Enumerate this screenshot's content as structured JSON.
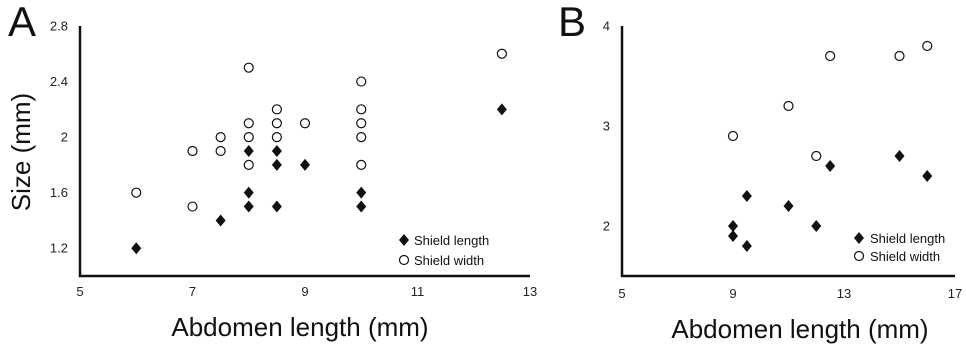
{
  "chart_data": [
    {
      "type": "scatter",
      "panel_label": "A",
      "xlabel": "Abdomen length (mm)",
      "ylabel": "Size (mm)",
      "xlim": [
        5,
        13
      ],
      "ylim": [
        1.0,
        2.8
      ],
      "xticks": [
        "5",
        "7",
        "9",
        "11",
        "13"
      ],
      "yticks": [
        "1.2",
        "1.6",
        "2",
        "2.4",
        "2.8"
      ],
      "legend_position": "bottom-right",
      "series": [
        {
          "name": "Shield length",
          "marker": "diamond-filled",
          "points": [
            {
              "x": 6.0,
              "y": 1.2
            },
            {
              "x": 7.5,
              "y": 1.4
            },
            {
              "x": 8.0,
              "y": 1.5
            },
            {
              "x": 8.0,
              "y": 1.6
            },
            {
              "x": 8.0,
              "y": 1.9
            },
            {
              "x": 8.5,
              "y": 1.5
            },
            {
              "x": 8.5,
              "y": 1.8
            },
            {
              "x": 8.5,
              "y": 1.9
            },
            {
              "x": 9.0,
              "y": 1.8
            },
            {
              "x": 10.0,
              "y": 1.5
            },
            {
              "x": 10.0,
              "y": 1.6
            },
            {
              "x": 12.5,
              "y": 2.2
            }
          ]
        },
        {
          "name": "Shield width",
          "marker": "circle-open",
          "points": [
            {
              "x": 6.0,
              "y": 1.6
            },
            {
              "x": 7.0,
              "y": 1.5
            },
            {
              "x": 7.0,
              "y": 1.9
            },
            {
              "x": 7.5,
              "y": 1.9
            },
            {
              "x": 7.5,
              "y": 2.0
            },
            {
              "x": 8.0,
              "y": 1.8
            },
            {
              "x": 8.0,
              "y": 2.0
            },
            {
              "x": 8.0,
              "y": 2.1
            },
            {
              "x": 8.0,
              "y": 2.5
            },
            {
              "x": 8.5,
              "y": 2.0
            },
            {
              "x": 8.5,
              "y": 2.1
            },
            {
              "x": 8.5,
              "y": 2.2
            },
            {
              "x": 9.0,
              "y": 2.1
            },
            {
              "x": 10.0,
              "y": 1.8
            },
            {
              "x": 10.0,
              "y": 2.0
            },
            {
              "x": 10.0,
              "y": 2.1
            },
            {
              "x": 10.0,
              "y": 2.2
            },
            {
              "x": 10.0,
              "y": 2.4
            },
            {
              "x": 12.5,
              "y": 2.6
            }
          ]
        }
      ]
    },
    {
      "type": "scatter",
      "panel_label": "B",
      "xlabel": "Abdomen length (mm)",
      "ylabel": "",
      "xlim": [
        5,
        17
      ],
      "ylim": [
        1.5,
        4.0
      ],
      "xticks": [
        "5",
        "9",
        "13",
        "17"
      ],
      "yticks": [
        "2",
        "3",
        "4"
      ],
      "legend_position": "bottom-right",
      "series": [
        {
          "name": "Shield length",
          "marker": "diamond-filled",
          "points": [
            {
              "x": 9.0,
              "y": 1.9
            },
            {
              "x": 9.0,
              "y": 2.0
            },
            {
              "x": 9.5,
              "y": 1.8
            },
            {
              "x": 9.5,
              "y": 2.3
            },
            {
              "x": 11.0,
              "y": 2.2
            },
            {
              "x": 12.0,
              "y": 2.0
            },
            {
              "x": 12.5,
              "y": 2.6
            },
            {
              "x": 15.0,
              "y": 2.7
            },
            {
              "x": 16.0,
              "y": 2.5
            }
          ]
        },
        {
          "name": "Shield width",
          "marker": "circle-open",
          "points": [
            {
              "x": 9.0,
              "y": 2.9
            },
            {
              "x": 11.0,
              "y": 3.2
            },
            {
              "x": 12.0,
              "y": 2.7
            },
            {
              "x": 12.5,
              "y": 3.7
            },
            {
              "x": 15.0,
              "y": 3.7
            },
            {
              "x": 16.0,
              "y": 3.8
            }
          ]
        }
      ]
    }
  ]
}
